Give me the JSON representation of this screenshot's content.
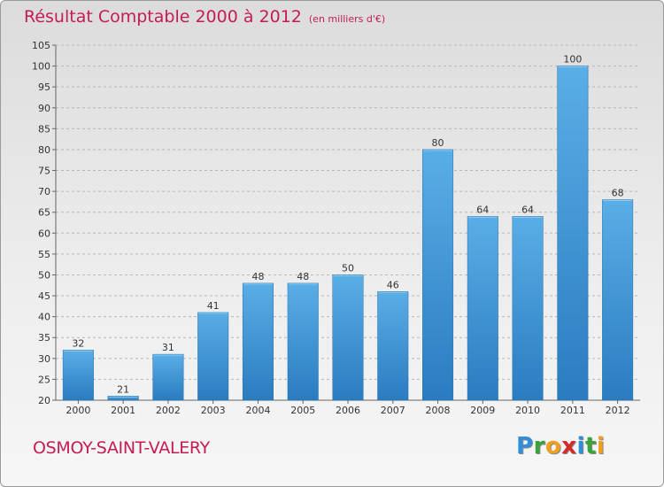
{
  "header": {
    "title": "Résultat Comptable 2000 à 2012",
    "subtitle": "(en milliers d'€)"
  },
  "footer": {
    "commune": "OSMOY-SAINT-VALERY",
    "logo_letters": [
      {
        "ch": "P",
        "color": "#2f8fd8"
      },
      {
        "ch": "r",
        "color": "#3aa33a"
      },
      {
        "ch": "o",
        "color": "#f0a020"
      },
      {
        "ch": "x",
        "color": "#d62a2a"
      },
      {
        "ch": "i",
        "color": "#2f8fd8"
      },
      {
        "ch": "t",
        "color": "#3aa33a"
      },
      {
        "ch": "i",
        "color": "#f0a020"
      }
    ]
  },
  "chart_data": {
    "type": "bar",
    "categories": [
      "2000",
      "2001",
      "2002",
      "2003",
      "2004",
      "2005",
      "2006",
      "2007",
      "2008",
      "2009",
      "2010",
      "2011",
      "2012"
    ],
    "values": [
      32,
      21,
      31,
      41,
      48,
      48,
      50,
      46,
      80,
      64,
      64,
      100,
      68
    ],
    "ylim": [
      20,
      105
    ],
    "yticks": [
      20,
      25,
      30,
      35,
      40,
      45,
      50,
      55,
      60,
      65,
      70,
      75,
      80,
      85,
      90,
      95,
      100,
      105
    ],
    "grid": true,
    "bar_color_top": "#5aaee6",
    "bar_color_bottom": "#2a7cc0",
    "grid_color": "#b8b8b8"
  }
}
